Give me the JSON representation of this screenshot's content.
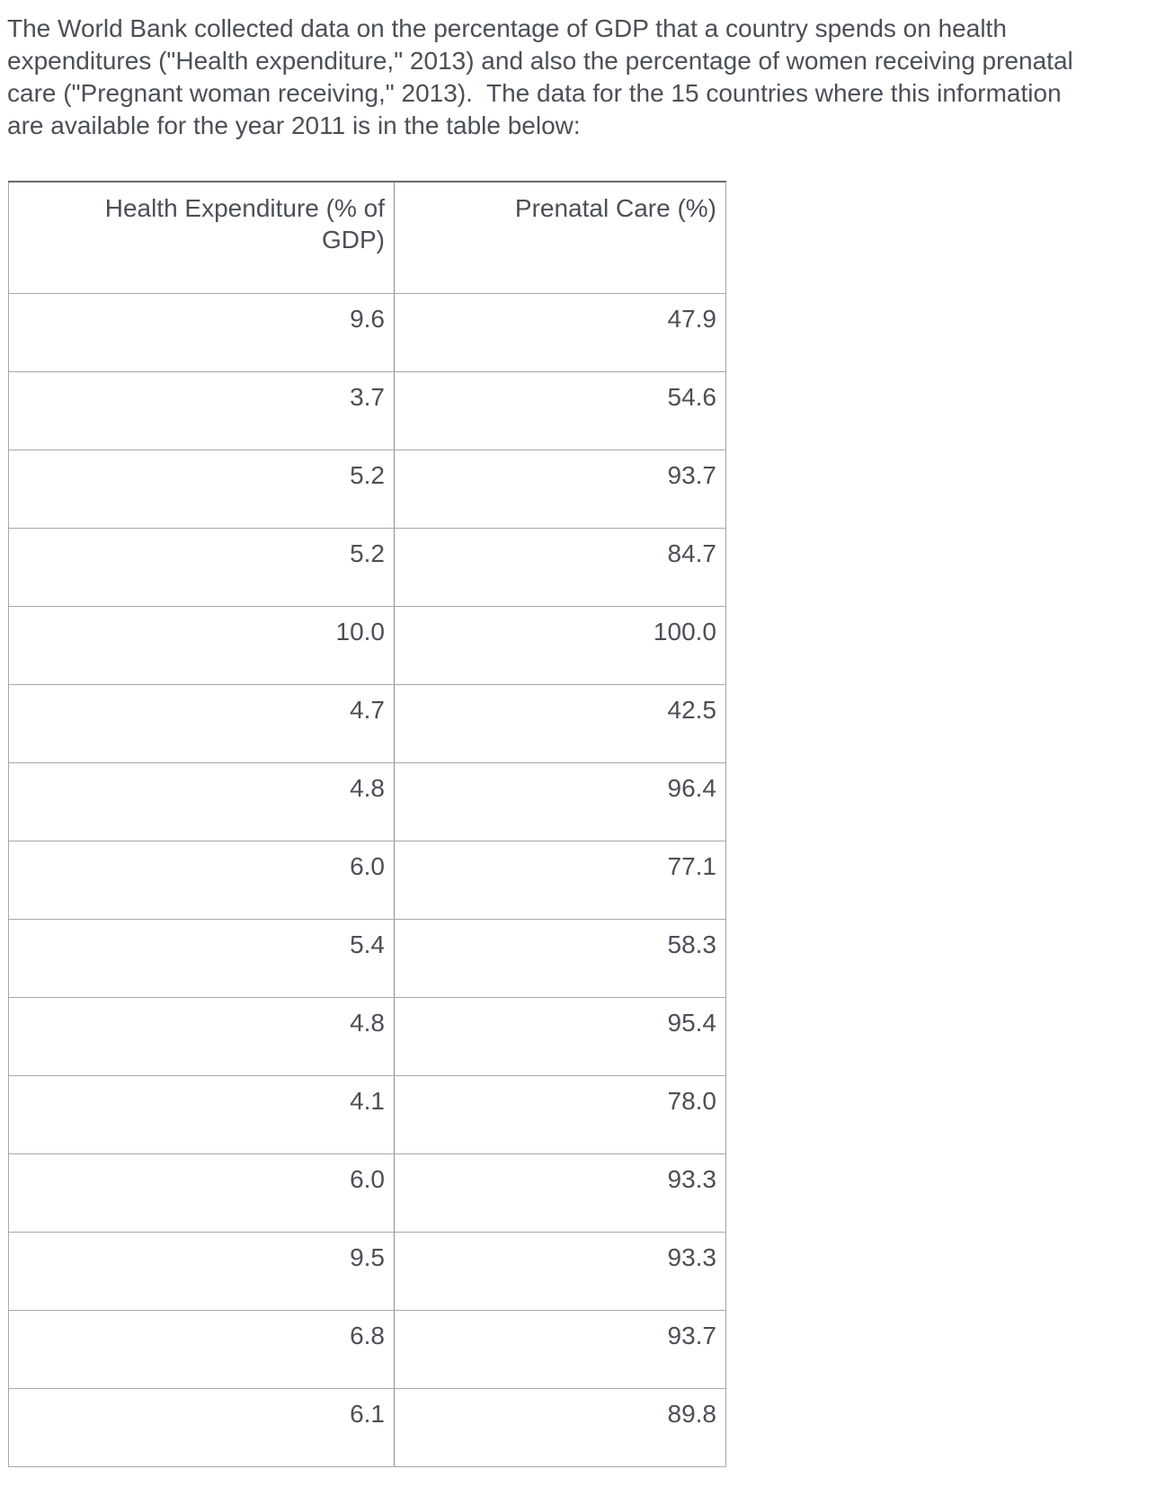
{
  "intro": {
    "text": "The World Bank collected data on the percentage of GDP that a country spends on health expenditures (\"Health expenditure,\" 2013) and also the percentage of women receiving prenatal care (\"Pregnant woman receiving,\" 2013).  The data for the 15 countries where this information are available for the year 2011 is in the table below:"
  },
  "table": {
    "columns": [
      "Health Expenditure (% of GDP)",
      "Prenatal Care (%)"
    ],
    "rows": [
      [
        "9.6",
        "47.9"
      ],
      [
        "3.7",
        "54.6"
      ],
      [
        "5.2",
        "93.7"
      ],
      [
        "5.2",
        "84.7"
      ],
      [
        "10.0",
        "100.0"
      ],
      [
        "4.7",
        "42.5"
      ],
      [
        "4.8",
        "96.4"
      ],
      [
        "6.0",
        "77.1"
      ],
      [
        "5.4",
        "58.3"
      ],
      [
        "4.8",
        "95.4"
      ],
      [
        "4.1",
        "78.0"
      ],
      [
        "6.0",
        "93.3"
      ],
      [
        "9.5",
        "93.3"
      ],
      [
        "6.8",
        "93.7"
      ],
      [
        "6.1",
        "89.8"
      ]
    ]
  },
  "colors": {
    "text": "#4b5056",
    "border_outer": "#7d7d7d",
    "border_top": "#6a6a6a",
    "border_inner": "#a8a8a8"
  }
}
